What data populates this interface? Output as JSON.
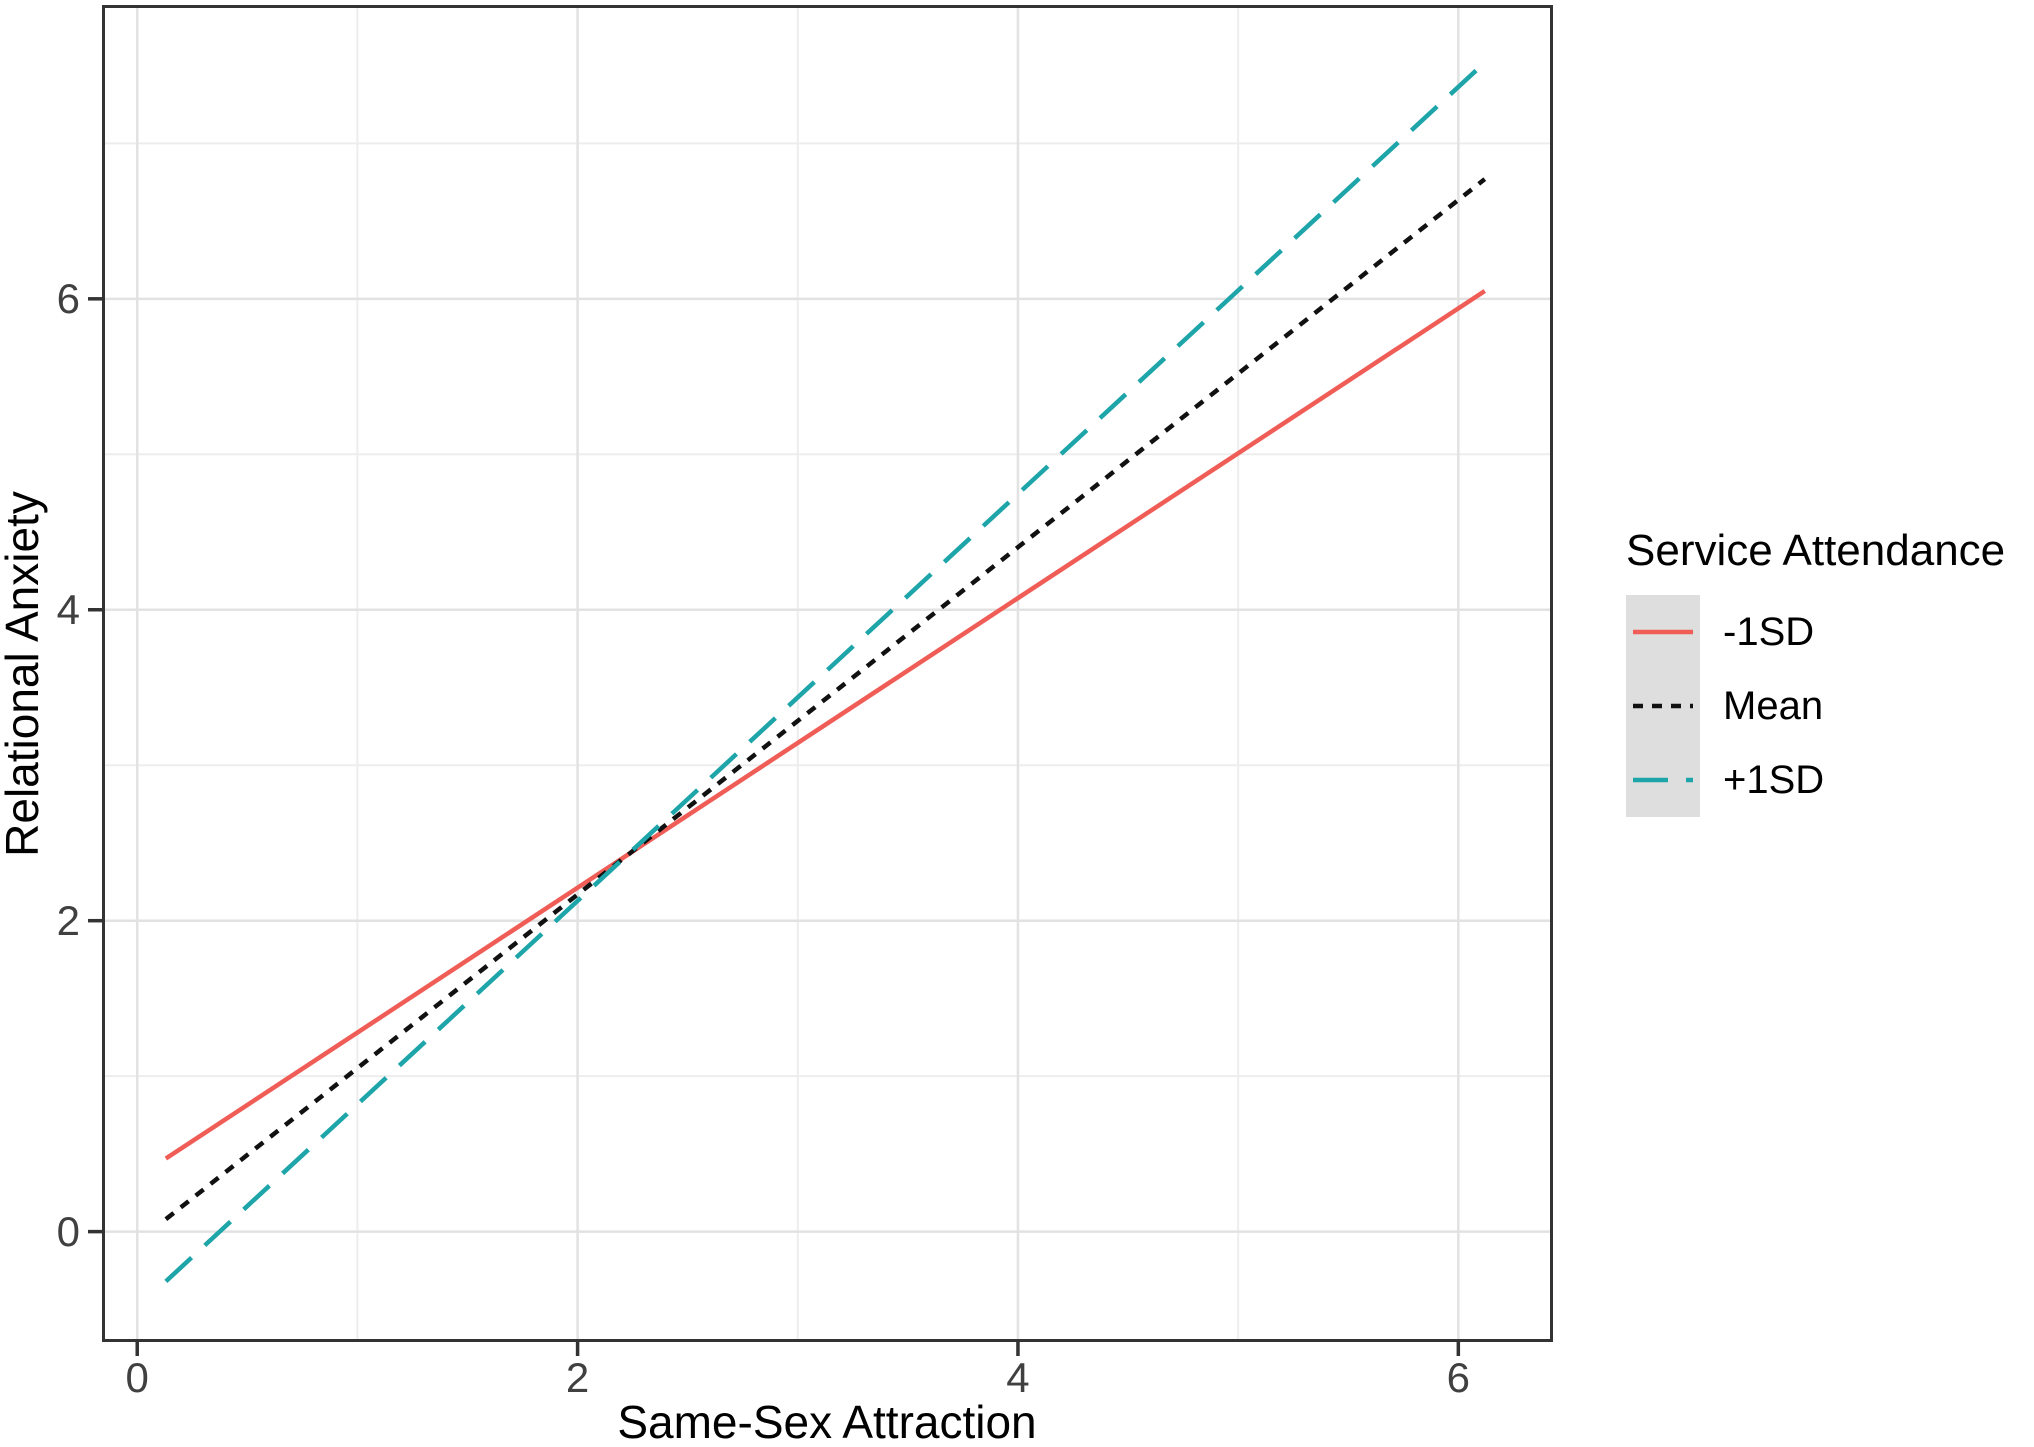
{
  "figure": {
    "background_color": "#FFFFFF",
    "panel_background_color": "#FFFFFF",
    "panel_border_color": "#333333",
    "grid_major_color": "#E2E2E2",
    "grid_minor_color": "#EDEDED",
    "tick_color": "#333333",
    "tick_label_color": "#404040",
    "legend_key_background_color": "#DEDEDE"
  },
  "chart_data": {
    "type": "line",
    "title": "",
    "xlabel": "Same-Sex Attraction",
    "ylabel": "Relational Anxiety",
    "xlim": [
      -0.16,
      6.43
    ],
    "ylim": [
      -0.71,
      7.89
    ],
    "x_ticks": [
      0,
      2,
      4,
      6
    ],
    "y_ticks": [
      0,
      2,
      4,
      6
    ],
    "x_minor_ticks": [
      1,
      3,
      5
    ],
    "y_minor_ticks": [
      1,
      3,
      5,
      7
    ],
    "grid": "major+minor",
    "legend_position": "right",
    "legend": {
      "title": "Service Attendance"
    },
    "series": [
      {
        "name": "-1SD",
        "color": "#F05D57",
        "linetype": "solid",
        "x": [
          0.13,
          6.12
        ],
        "y": [
          0.47,
          6.05
        ]
      },
      {
        "name": "Mean",
        "color": "#111111",
        "linetype": "dotted",
        "x": [
          0.13,
          6.12
        ],
        "y": [
          0.08,
          6.77
        ]
      },
      {
        "name": "+1SD",
        "color": "#1EA5AA",
        "linetype": "longdash",
        "x": [
          0.13,
          6.12
        ],
        "y": [
          -0.32,
          7.52
        ]
      }
    ]
  }
}
